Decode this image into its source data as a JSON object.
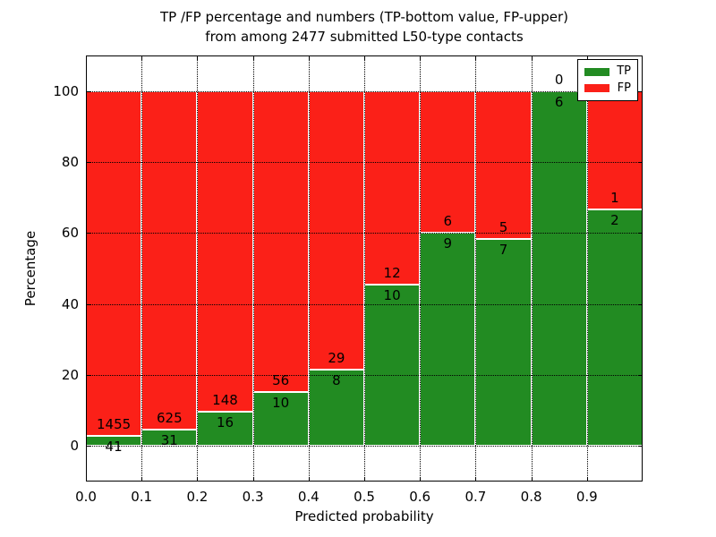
{
  "title": {
    "line1": "TP /FP percentage and numbers (TP-bottom value, FP-upper)",
    "line2": "from among 2477 submitted L50-type contacts"
  },
  "axes": {
    "xlabel": "Predicted probability",
    "ylabel": "Percentage"
  },
  "legend": {
    "items": [
      {
        "label": "TP",
        "color": "#228b22"
      },
      {
        "label": "FP",
        "color": "#fb2018"
      }
    ]
  },
  "chart_data": {
    "type": "bar",
    "subtype": "stacked-100-percent",
    "title": "TP /FP percentage and numbers (TP-bottom value, FP-upper) from among 2477 submitted L50-type contacts",
    "xlabel": "Predicted probability",
    "ylabel": "Percentage",
    "xlim": [
      0.0,
      1.0
    ],
    "ylim": [
      -10,
      110
    ],
    "grid": true,
    "grid_style": "dotted",
    "legend_position": "upper right",
    "total_submitted": 2477,
    "bin_width": 0.1,
    "bin_starts": [
      0.0,
      0.1,
      0.2,
      0.3,
      0.4,
      0.5,
      0.6,
      0.7,
      0.8,
      0.9
    ],
    "x_tick_values": [
      0.0,
      0.1,
      0.2,
      0.3,
      0.4,
      0.5,
      0.6,
      0.7,
      0.8,
      0.9
    ],
    "x_tick_labels": [
      "0.0",
      "0.1",
      "0.2",
      "0.3",
      "0.4",
      "0.5",
      "0.6",
      "0.7",
      "0.8",
      "0.9"
    ],
    "y_tick_values": [
      0,
      20,
      40,
      60,
      80,
      100
    ],
    "y_tick_labels": [
      "0",
      "20",
      "40",
      "60",
      "80",
      "100"
    ],
    "series": [
      {
        "name": "TP",
        "color": "#228b22",
        "counts": [
          41,
          31,
          16,
          10,
          8,
          10,
          9,
          7,
          6,
          2
        ]
      },
      {
        "name": "FP",
        "color": "#fb2018",
        "counts": [
          1455,
          625,
          148,
          56,
          29,
          12,
          6,
          5,
          0,
          1
        ]
      }
    ],
    "tp_percent_of_bin": [
      2.74,
      4.73,
      9.76,
      15.15,
      21.62,
      45.45,
      60.0,
      58.33,
      100.0,
      66.67
    ]
  }
}
